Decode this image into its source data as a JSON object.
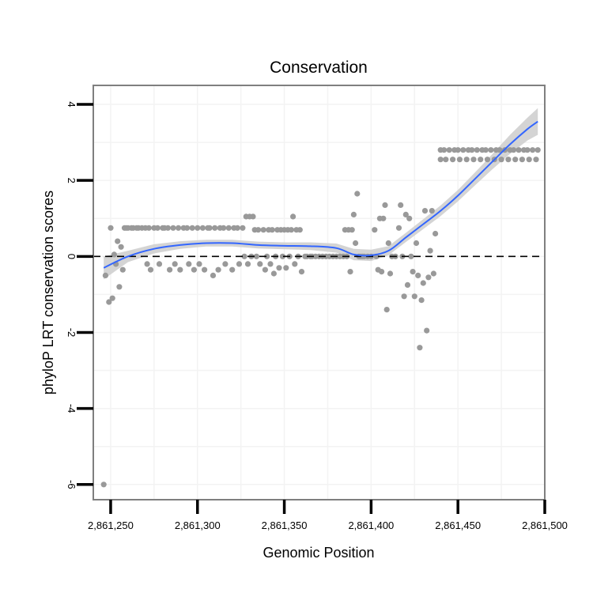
{
  "chart_data": {
    "type": "scatter",
    "title": "Conservation",
    "xlabel": "Genomic Position",
    "ylabel": "phyloP LRT conservation scores",
    "xlim": [
      2861240,
      2861500
    ],
    "ylim": [
      -6.4,
      4.5
    ],
    "x_ticks": [
      2861250,
      2861300,
      2861350,
      2861400,
      2861450,
      2861500
    ],
    "x_tick_labels": [
      "2,861,250",
      "2,861,300",
      "2,861,350",
      "2,861,400",
      "2,861,450",
      "2,861,500"
    ],
    "y_ticks": [
      -6,
      -4,
      -2,
      0,
      2,
      4
    ],
    "y_tick_labels": [
      "-6",
      "-4",
      "-2",
      "0",
      "2",
      "4"
    ],
    "reference_line": {
      "y": 0,
      "style": "dashed",
      "color": "#000000"
    },
    "grid": true,
    "colors": {
      "points": "#999999",
      "smooth_line": "#3366FF",
      "confidence_band": "#cccccc",
      "panel_border": "#7f7f7f"
    },
    "series": [
      {
        "name": "scores",
        "points": [
          [
            2861247,
            -0.5
          ],
          [
            2861249,
            -1.2
          ],
          [
            2861250,
            0.75
          ],
          [
            2861251,
            -1.1
          ],
          [
            2861252,
            0.05
          ],
          [
            2861253,
            -0.2
          ],
          [
            2861254,
            0.4
          ],
          [
            2861255,
            -0.8
          ],
          [
            2861256,
            0.25
          ],
          [
            2861257,
            -0.35
          ],
          [
            2861258,
            0.75
          ],
          [
            2861259,
            0.75
          ],
          [
            2861260,
            0.75
          ],
          [
            2861262,
            0.75
          ],
          [
            2861263,
            0.75
          ],
          [
            2861265,
            0.75
          ],
          [
            2861266,
            0.75
          ],
          [
            2861268,
            0.75
          ],
          [
            2861270,
            0.75
          ],
          [
            2861271,
            -0.2
          ],
          [
            2861272,
            0.75
          ],
          [
            2861273,
            -0.35
          ],
          [
            2861275,
            0.75
          ],
          [
            2861277,
            0.75
          ],
          [
            2861278,
            -0.2
          ],
          [
            2861280,
            0.75
          ],
          [
            2861281,
            0.75
          ],
          [
            2861283,
            0.75
          ],
          [
            2861284,
            -0.35
          ],
          [
            2861286,
            0.75
          ],
          [
            2861287,
            -0.2
          ],
          [
            2861289,
            0.75
          ],
          [
            2861290,
            -0.35
          ],
          [
            2861292,
            0.75
          ],
          [
            2861294,
            0.75
          ],
          [
            2861295,
            -0.2
          ],
          [
            2861297,
            0.75
          ],
          [
            2861298,
            -0.35
          ],
          [
            2861300,
            0.75
          ],
          [
            2861301,
            -0.2
          ],
          [
            2861303,
            0.75
          ],
          [
            2861304,
            -0.35
          ],
          [
            2861306,
            0.75
          ],
          [
            2861307,
            0.75
          ],
          [
            2861309,
            -0.5
          ],
          [
            2861310,
            0.75
          ],
          [
            2861312,
            -0.35
          ],
          [
            2861313,
            0.75
          ],
          [
            2861315,
            0.75
          ],
          [
            2861316,
            -0.2
          ],
          [
            2861318,
            0.75
          ],
          [
            2861320,
            -0.35
          ],
          [
            2861321,
            0.75
          ],
          [
            2861323,
            0.75
          ],
          [
            2861324,
            -0.2
          ],
          [
            2861326,
            0.75
          ],
          [
            2861327,
            0.0
          ],
          [
            2861328,
            1.05
          ],
          [
            2861329,
            -0.2
          ],
          [
            2861330,
            1.05
          ],
          [
            2861331,
            0.0
          ],
          [
            2861332,
            1.05
          ],
          [
            2861333,
            0.7
          ],
          [
            2861334,
            0.0
          ],
          [
            2861335,
            0.7
          ],
          [
            2861336,
            -0.2
          ],
          [
            2861338,
            0.7
          ],
          [
            2861339,
            -0.35
          ],
          [
            2861340,
            0.0
          ],
          [
            2861341,
            0.7
          ],
          [
            2861342,
            -0.2
          ],
          [
            2861343,
            0.7
          ],
          [
            2861344,
            -0.45
          ],
          [
            2861345,
            0.0
          ],
          [
            2861346,
            0.7
          ],
          [
            2861347,
            -0.3
          ],
          [
            2861348,
            0.7
          ],
          [
            2861349,
            0.0
          ],
          [
            2861350,
            0.7
          ],
          [
            2861351,
            -0.3
          ],
          [
            2861352,
            0.7
          ],
          [
            2861353,
            0.0
          ],
          [
            2861354,
            0.7
          ],
          [
            2861355,
            1.05
          ],
          [
            2861356,
            -0.2
          ],
          [
            2861357,
            0.7
          ],
          [
            2861358,
            0.0
          ],
          [
            2861359,
            0.7
          ],
          [
            2861360,
            -0.4
          ],
          [
            2861362,
            0.0
          ],
          [
            2861363,
            0.0
          ],
          [
            2861365,
            0.0
          ],
          [
            2861366,
            0.0
          ],
          [
            2861368,
            0.0
          ],
          [
            2861370,
            0.0
          ],
          [
            2861372,
            0.0
          ],
          [
            2861374,
            0.0
          ],
          [
            2861376,
            0.0
          ],
          [
            2861378,
            0.0
          ],
          [
            2861380,
            0.0
          ],
          [
            2861382,
            0.0
          ],
          [
            2861384,
            0.0
          ],
          [
            2861385,
            0.7
          ],
          [
            2861386,
            0.0
          ],
          [
            2861387,
            0.7
          ],
          [
            2861388,
            -0.4
          ],
          [
            2861389,
            0.7
          ],
          [
            2861390,
            1.1
          ],
          [
            2861391,
            0.35
          ],
          [
            2861392,
            1.65
          ],
          [
            2861393,
            0.0
          ],
          [
            2861394,
            0.0
          ],
          [
            2861395,
            0.0
          ],
          [
            2861396,
            0.0
          ],
          [
            2861398,
            0.0
          ],
          [
            2861400,
            0.0
          ],
          [
            2861402,
            0.7
          ],
          [
            2861403,
            0.0
          ],
          [
            2861404,
            -0.35
          ],
          [
            2861405,
            1.0
          ],
          [
            2861406,
            -0.4
          ],
          [
            2861407,
            1.0
          ],
          [
            2861408,
            1.35
          ],
          [
            2861409,
            -1.4
          ],
          [
            2861410,
            0.35
          ],
          [
            2861411,
            -0.45
          ],
          [
            2861412,
            0.0
          ],
          [
            2861414,
            0.0
          ],
          [
            2861416,
            0.75
          ],
          [
            2861417,
            1.35
          ],
          [
            2861418,
            0.0
          ],
          [
            2861419,
            -1.05
          ],
          [
            2861420,
            1.1
          ],
          [
            2861421,
            -0.75
          ],
          [
            2861422,
            1.0
          ],
          [
            2861423,
            0.0
          ],
          [
            2861424,
            -0.4
          ],
          [
            2861425,
            -1.05
          ],
          [
            2861426,
            0.35
          ],
          [
            2861427,
            -0.5
          ],
          [
            2861428,
            -2.4
          ],
          [
            2861429,
            -1.15
          ],
          [
            2861430,
            -0.7
          ],
          [
            2861431,
            1.2
          ],
          [
            2861432,
            -1.95
          ],
          [
            2861433,
            -0.55
          ],
          [
            2861434,
            0.15
          ],
          [
            2861435,
            1.2
          ],
          [
            2861436,
            -0.45
          ],
          [
            2861437,
            0.6
          ],
          [
            2861440,
            2.8
          ],
          [
            2861440,
            2.55
          ],
          [
            2861442,
            2.8
          ],
          [
            2861443,
            2.55
          ],
          [
            2861445,
            2.8
          ],
          [
            2861447,
            2.55
          ],
          [
            2861448,
            2.8
          ],
          [
            2861450,
            2.8
          ],
          [
            2861451,
            2.55
          ],
          [
            2861453,
            2.8
          ],
          [
            2861455,
            2.55
          ],
          [
            2861456,
            2.8
          ],
          [
            2861458,
            2.8
          ],
          [
            2861459,
            2.55
          ],
          [
            2861461,
            2.8
          ],
          [
            2861463,
            2.55
          ],
          [
            2861464,
            2.8
          ],
          [
            2861466,
            2.8
          ],
          [
            2861467,
            2.55
          ],
          [
            2861469,
            2.8
          ],
          [
            2861471,
            2.55
          ],
          [
            2861472,
            2.8
          ],
          [
            2861474,
            2.8
          ],
          [
            2861475,
            2.55
          ],
          [
            2861477,
            2.8
          ],
          [
            2861479,
            2.55
          ],
          [
            2861480,
            2.8
          ],
          [
            2861482,
            2.8
          ],
          [
            2861483,
            2.55
          ],
          [
            2861485,
            2.8
          ],
          [
            2861487,
            2.55
          ],
          [
            2861488,
            2.8
          ],
          [
            2861490,
            2.8
          ],
          [
            2861491,
            2.55
          ],
          [
            2861493,
            2.8
          ],
          [
            2861495,
            2.55
          ],
          [
            2861496,
            2.8
          ],
          [
            2861246,
            -6.0
          ]
        ]
      },
      {
        "name": "smooth",
        "type": "line",
        "x": [
          2861246,
          2861260,
          2861275,
          2861290,
          2861305,
          2861320,
          2861335,
          2861350,
          2861365,
          2861380,
          2861390,
          2861400,
          2861410,
          2861420,
          2861430,
          2861440,
          2861450,
          2861460,
          2861470,
          2861480,
          2861490,
          2861496
        ],
        "y": [
          -0.3,
          0.0,
          0.2,
          0.3,
          0.35,
          0.35,
          0.3,
          0.28,
          0.27,
          0.22,
          0.05,
          0.03,
          0.15,
          0.5,
          0.85,
          1.2,
          1.6,
          2.05,
          2.5,
          2.95,
          3.35,
          3.55
        ],
        "lower": [
          -0.6,
          -0.15,
          0.08,
          0.2,
          0.26,
          0.26,
          0.21,
          0.19,
          0.17,
          0.1,
          -0.1,
          -0.12,
          0.03,
          0.38,
          0.72,
          1.06,
          1.45,
          1.88,
          2.3,
          2.7,
          3.05,
          3.2
        ],
        "upper": [
          0.0,
          0.15,
          0.32,
          0.4,
          0.44,
          0.44,
          0.39,
          0.37,
          0.37,
          0.34,
          0.2,
          0.18,
          0.27,
          0.62,
          0.98,
          1.34,
          1.75,
          2.22,
          2.7,
          3.2,
          3.65,
          3.9
        ]
      }
    ]
  }
}
